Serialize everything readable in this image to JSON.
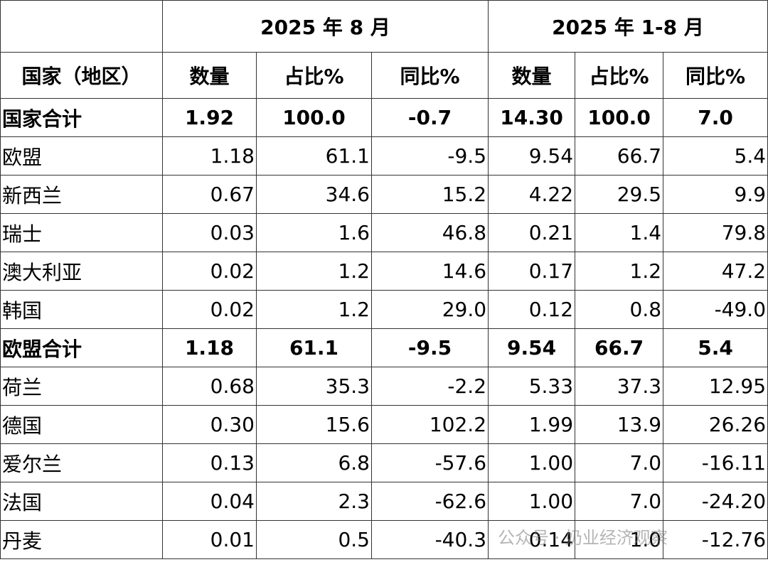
{
  "table": {
    "groups": [
      "2025 年 8 月",
      "2025 年 1-8 月"
    ],
    "columns": [
      "国家（地区）",
      "数量",
      "占比%",
      "同比%",
      "数量",
      "占比%",
      "同比%"
    ],
    "rows": [
      [
        "国家合计",
        "1.92",
        "100.0",
        "-0.7",
        "14.30",
        "100.0",
        "7.0"
      ],
      [
        "欧盟",
        "1.18",
        "61.1",
        "-9.5",
        "9.54",
        "66.7",
        "5.4"
      ],
      [
        "新西兰",
        "0.67",
        "34.6",
        "15.2",
        "4.22",
        "29.5",
        "9.9"
      ],
      [
        "瑞士",
        "0.03",
        "1.6",
        "46.8",
        "0.21",
        "1.4",
        "79.8"
      ],
      [
        "澳大利亚",
        "0.02",
        "1.2",
        "14.6",
        "0.17",
        "1.2",
        "47.2"
      ],
      [
        "韩国",
        "0.02",
        "1.2",
        "29.0",
        "0.12",
        "0.8",
        "-49.0"
      ],
      [
        "欧盟合计",
        "1.18",
        "61.1",
        "-9.5",
        "9.54",
        "66.7",
        "5.4"
      ],
      [
        "荷兰",
        "0.68",
        "35.3",
        "-2.2",
        "5.33",
        "37.3",
        "12.95"
      ],
      [
        "德国",
        "0.30",
        "15.6",
        "102.2",
        "1.99",
        "13.9",
        "26.26"
      ],
      [
        "爱尔兰",
        "0.13",
        "6.8",
        "-57.6",
        "1.00",
        "7.0",
        "-16.11"
      ],
      [
        "法国",
        "0.04",
        "2.3",
        "-62.6",
        "1.00",
        "7.0",
        "-24.20"
      ],
      [
        "丹麦",
        "0.01",
        "0.5",
        "-40.3",
        "0.14",
        "1.0",
        "-12.76"
      ]
    ]
  },
  "watermark": "公众号 · 奶业经济观察"
}
